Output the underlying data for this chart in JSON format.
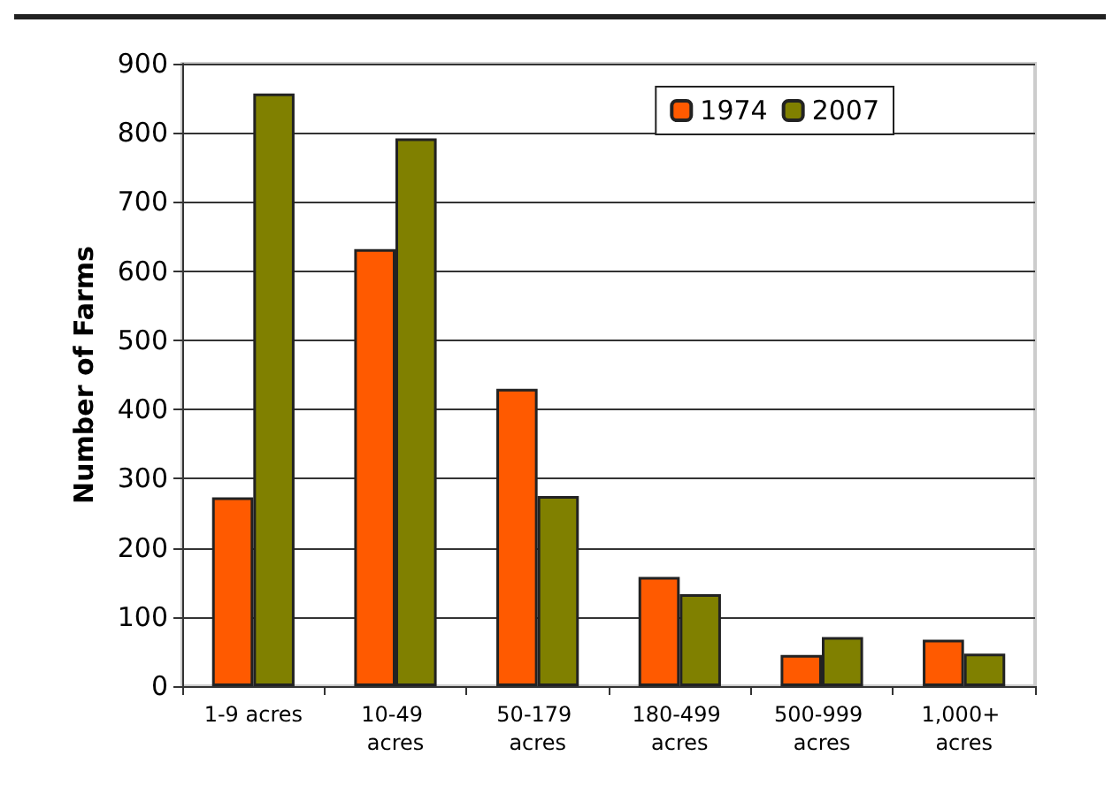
{
  "chart_data": {
    "type": "bar",
    "ylabel": "Number of Farms",
    "categories": [
      "1-9 acres",
      "10-49 acres",
      "50-179 acres",
      "180-499 acres",
      "500-999 acres",
      "1,000+ acres"
    ],
    "series": [
      {
        "name": "1974",
        "color": "#ff5a00",
        "values": [
          273,
          632,
          430,
          158,
          45,
          67
        ]
      },
      {
        "name": "2007",
        "color": "#808000",
        "values": [
          857,
          792,
          275,
          133,
          71,
          47
        ]
      }
    ],
    "ylim": [
      0,
      900
    ],
    "yticks": [
      0,
      100,
      200,
      300,
      400,
      500,
      600,
      700,
      800,
      900
    ],
    "grid": "y",
    "legend": "top right"
  }
}
